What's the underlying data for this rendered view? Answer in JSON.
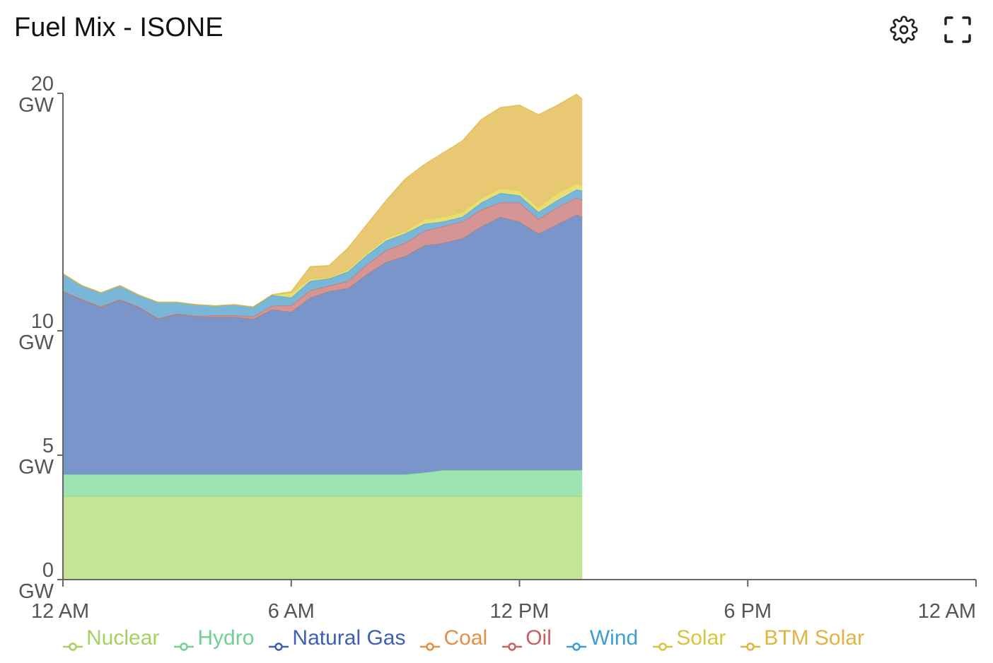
{
  "header": {
    "title": "Fuel Mix - ISONE",
    "settings_icon": "gear-icon",
    "fullscreen_icon": "fullscreen-icon"
  },
  "chart_data": {
    "type": "area",
    "stacked": true,
    "title": "Fuel Mix - ISONE",
    "x_unit": "hour of day",
    "xlim": [
      0,
      24
    ],
    "x_ticks": [
      0,
      6,
      12,
      18,
      24
    ],
    "x_tick_labels": [
      "12 AM",
      "6 AM",
      "12 PM",
      "6 PM",
      "12 AM"
    ],
    "y_ticks": [
      0,
      5,
      10,
      20
    ],
    "y_tick_labels": [
      [
        "0",
        "GW"
      ],
      [
        "5",
        "GW"
      ],
      [
        "10",
        "GW"
      ],
      [
        "20",
        "GW"
      ]
    ],
    "ylim": [
      0,
      20
    ],
    "grid": false,
    "legend_placement": "bottom",
    "x": [
      0,
      0.5,
      1,
      1.5,
      2,
      2.5,
      3,
      3.5,
      4,
      4.5,
      5,
      5.5,
      6,
      6.5,
      7,
      7.5,
      8,
      8.5,
      9,
      9.5,
      10,
      10.5,
      11,
      11.5,
      12,
      12.5,
      13,
      13.5,
      13.65
    ],
    "series": [
      {
        "name": "Nuclear",
        "color": "#a6d05f",
        "fill": "#c4e596",
        "values": [
          3.35,
          3.35,
          3.35,
          3.35,
          3.35,
          3.35,
          3.35,
          3.35,
          3.35,
          3.35,
          3.35,
          3.35,
          3.35,
          3.35,
          3.35,
          3.35,
          3.35,
          3.35,
          3.35,
          3.35,
          3.35,
          3.35,
          3.35,
          3.35,
          3.35,
          3.35,
          3.35,
          3.35,
          3.35
        ]
      },
      {
        "name": "Hydro",
        "color": "#6fd08f",
        "fill": "#9ee4b0",
        "values": [
          0.88,
          0.88,
          0.88,
          0.88,
          0.88,
          0.88,
          0.88,
          0.88,
          0.88,
          0.88,
          0.88,
          0.88,
          0.88,
          0.88,
          0.88,
          0.88,
          0.88,
          0.88,
          0.88,
          0.95,
          1.05,
          1.05,
          1.05,
          1.05,
          1.05,
          1.05,
          1.05,
          1.05,
          1.05
        ]
      },
      {
        "name": "Natural Gas",
        "color": "#3f5fb5",
        "fill": "#7a95c9",
        "values": [
          7.42,
          7.07,
          6.77,
          7.07,
          6.75,
          6.27,
          6.47,
          6.37,
          6.37,
          6.37,
          6.27,
          6.67,
          6.57,
          7.17,
          7.44,
          7.57,
          8.17,
          8.67,
          8.92,
          9.3,
          9.3,
          9.5,
          10.0,
          10.4,
          10.2,
          9.7,
          10.1,
          10.5,
          10.4
        ]
      },
      {
        "name": "Coal",
        "color": "#e38f46",
        "fill": "#edb27e",
        "values": [
          0,
          0,
          0,
          0,
          0,
          0,
          0,
          0,
          0,
          0,
          0,
          0,
          0,
          0,
          0,
          0,
          0,
          0,
          0,
          0,
          0,
          0,
          0,
          0,
          0,
          0,
          0,
          0,
          0
        ]
      },
      {
        "name": "Oil",
        "color": "#c95f5f",
        "fill": "#d49594",
        "values": [
          0.02,
          0.02,
          0.02,
          0.02,
          0.02,
          0.02,
          0.02,
          0.02,
          0.05,
          0.05,
          0.1,
          0.15,
          0.27,
          0.3,
          0.23,
          0.3,
          0.4,
          0.5,
          0.55,
          0.6,
          0.7,
          0.7,
          0.7,
          0.6,
          0.8,
          0.6,
          0.7,
          0.7,
          0.7
        ]
      },
      {
        "name": "Wind",
        "color": "#3d9fd1",
        "fill": "#79b6d8",
        "values": [
          0.73,
          0.58,
          0.58,
          0.58,
          0.5,
          0.68,
          0.48,
          0.48,
          0.4,
          0.45,
          0.4,
          0.45,
          0.33,
          0.4,
          0.3,
          0.4,
          0.4,
          0.4,
          0.4,
          0.3,
          0.2,
          0.2,
          0.3,
          0.4,
          0.3,
          0.3,
          0.3,
          0.35,
          0.4
        ]
      },
      {
        "name": "Solar",
        "color": "#d8c53e",
        "fill": "#e7de74",
        "values": [
          0,
          0,
          0,
          0,
          0,
          0,
          0,
          0,
          0,
          0,
          0,
          0.02,
          0.2,
          0.1,
          0.05,
          0.1,
          0.1,
          0.1,
          0.1,
          0.2,
          0.2,
          0.2,
          0.2,
          0.2,
          0.2,
          0.2,
          0.3,
          0.25,
          0.25
        ]
      },
      {
        "name": "BTM Solar",
        "color": "#e0b43e",
        "fill": "#e8c873",
        "values": [
          0,
          0,
          0,
          0,
          0,
          0,
          0,
          0,
          0,
          0,
          0,
          0,
          0.05,
          0.5,
          0.5,
          0.9,
          1.2,
          1.6,
          2.2,
          2.3,
          2.7,
          3.0,
          3.3,
          3.4,
          3.6,
          3.9,
          3.7,
          3.76,
          3.6
        ]
      }
    ]
  }
}
